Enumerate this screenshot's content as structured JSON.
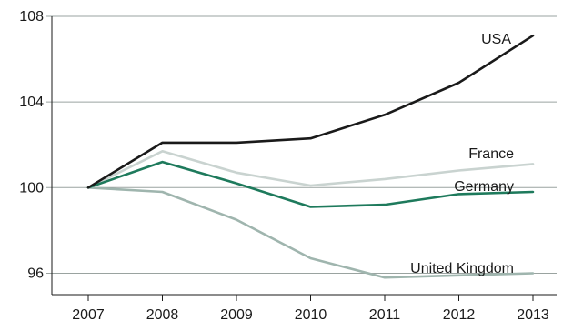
{
  "chart_data": {
    "type": "line",
    "x": [
      "2007",
      "2008",
      "2009",
      "2010",
      "2011",
      "2012",
      "2013"
    ],
    "ylim": [
      95,
      108
    ],
    "yticks": [
      "96",
      "100",
      "104",
      "108"
    ],
    "grid": "horizontal",
    "series": [
      {
        "name": "USA",
        "color": "#1a1a1a",
        "values": [
          100.0,
          102.1,
          102.1,
          102.3,
          103.4,
          104.9,
          107.1
        ]
      },
      {
        "name": "France",
        "color": "#c9d3d0",
        "values": [
          100.0,
          101.7,
          100.7,
          100.1,
          100.4,
          100.8,
          101.1
        ]
      },
      {
        "name": "Germany",
        "color": "#1e7a5c",
        "values": [
          100.0,
          101.2,
          100.2,
          99.1,
          99.2,
          99.7,
          99.8
        ]
      },
      {
        "name": "United Kingdom",
        "color": "#9fb5ae",
        "values": [
          100.0,
          99.8,
          98.5,
          96.7,
          95.8,
          95.9,
          96.0
        ]
      }
    ]
  }
}
